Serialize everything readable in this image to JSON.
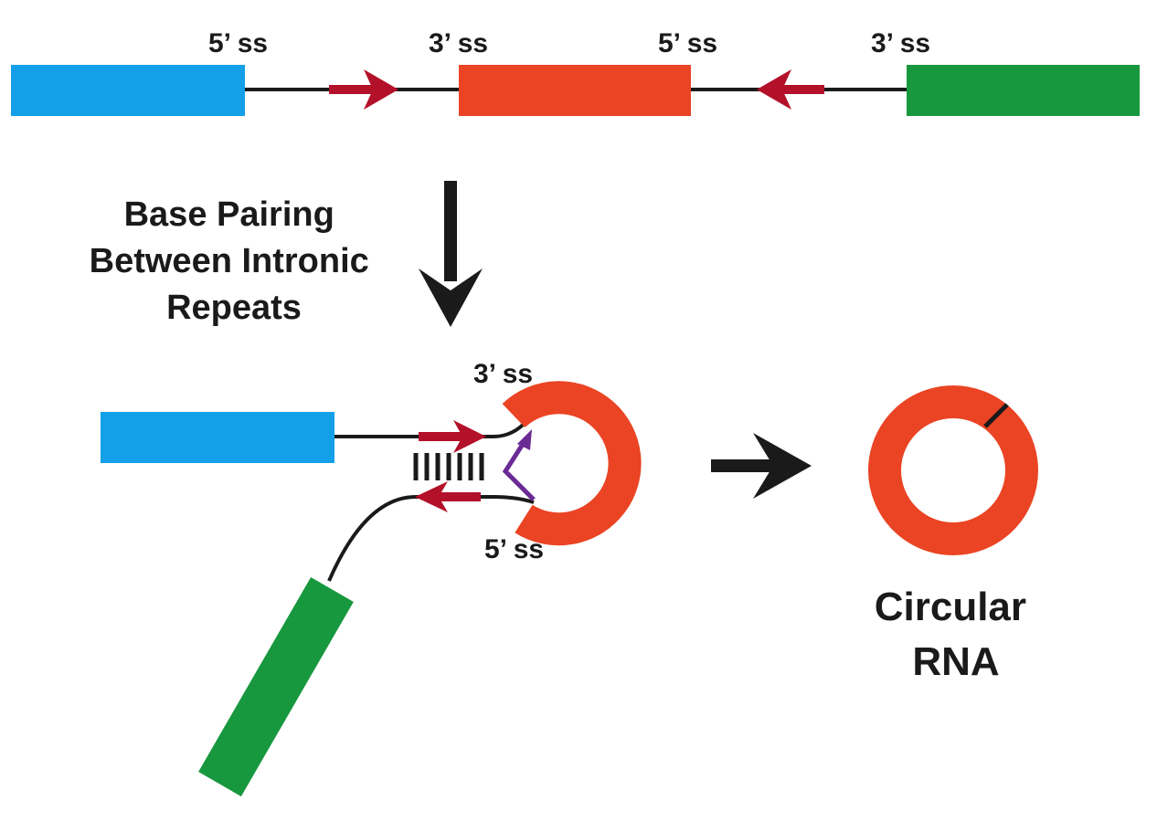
{
  "top_row": {
    "labels": [
      "5’ ss",
      "3’ ss",
      "5’ ss",
      "3’ ss"
    ]
  },
  "step_label": [
    "Base Pairing",
    "Between Intronic",
    "Repeats"
  ],
  "hairpin": {
    "label_3ss": "3’ ss",
    "label_5ss": "5’ ss"
  },
  "product_label": [
    "Circular",
    "RNA"
  ],
  "colors": {
    "exon1": "#14a0e8",
    "exon2": "#ea4424",
    "exon3": "#18983e",
    "intronic_repeat": "#b3102a",
    "splice_arrow": "#6a2b94",
    "line": "#1a1a1a"
  }
}
